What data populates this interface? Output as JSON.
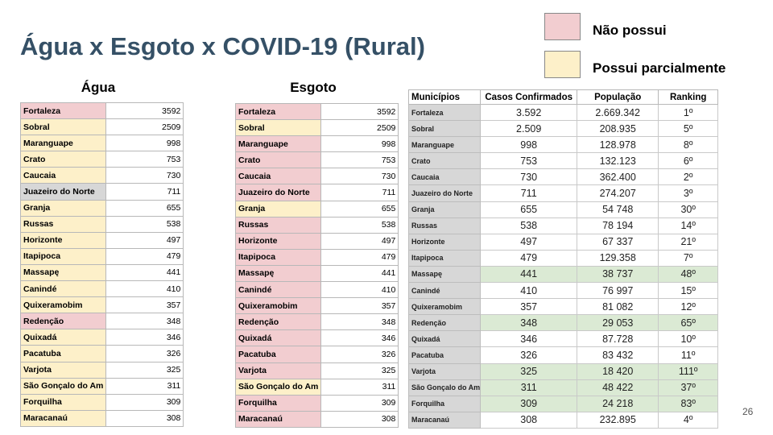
{
  "slide": {
    "title": "Água x Esgoto x COVID-19 (Rural)",
    "page_number": "26"
  },
  "legend": [
    {
      "label": "Não possui",
      "color": "#f2cdd0"
    },
    {
      "label": "Possui parcialmente",
      "color": "#fdf0c9"
    }
  ],
  "agua": {
    "heading": "Água",
    "rows": [
      {
        "name": "Fortaleza",
        "value": "3592",
        "status": "pink"
      },
      {
        "name": "Sobral",
        "value": "2509",
        "status": "yellow"
      },
      {
        "name": "Maranguape",
        "value": "998",
        "status": "yellow"
      },
      {
        "name": "Crato",
        "value": "753",
        "status": "yellow"
      },
      {
        "name": "Caucaia",
        "value": "730",
        "status": "yellow"
      },
      {
        "name": "Juazeiro do Norte",
        "value": "711",
        "status": "grey"
      },
      {
        "name": "Granja",
        "value": "655",
        "status": "yellow"
      },
      {
        "name": "Russas",
        "value": "538",
        "status": "yellow"
      },
      {
        "name": "Horizonte",
        "value": "497",
        "status": "yellow"
      },
      {
        "name": "Itapipoca",
        "value": "479",
        "status": "yellow"
      },
      {
        "name": "Massapę",
        "value": "441",
        "status": "yellow"
      },
      {
        "name": "Canindé",
        "value": "410",
        "status": "yellow"
      },
      {
        "name": "Quixeramobim",
        "value": "357",
        "status": "yellow"
      },
      {
        "name": "Redenção",
        "value": "348",
        "status": "pink"
      },
      {
        "name": "Quixadá",
        "value": "346",
        "status": "yellow"
      },
      {
        "name": "Pacatuba",
        "value": "326",
        "status": "yellow"
      },
      {
        "name": "Varjota",
        "value": "325",
        "status": "yellow"
      },
      {
        "name": "São Gonçalo do Am",
        "value": "311",
        "status": "yellow"
      },
      {
        "name": "Forquilha",
        "value": "309",
        "status": "yellow"
      },
      {
        "name": "Maracanaú",
        "value": "308",
        "status": "yellow"
      }
    ]
  },
  "esgoto": {
    "heading": "Esgoto",
    "rows": [
      {
        "name": "Fortaleza",
        "value": "3592",
        "status": "pink"
      },
      {
        "name": "Sobral",
        "value": "2509",
        "status": "yellow"
      },
      {
        "name": "Maranguape",
        "value": "998",
        "status": "pink"
      },
      {
        "name": "Crato",
        "value": "753",
        "status": "pink"
      },
      {
        "name": "Caucaia",
        "value": "730",
        "status": "pink"
      },
      {
        "name": "Juazeiro do Norte",
        "value": "711",
        "status": "pink"
      },
      {
        "name": "Granja",
        "value": "655",
        "status": "yellow"
      },
      {
        "name": "Russas",
        "value": "538",
        "status": "pink"
      },
      {
        "name": "Horizonte",
        "value": "497",
        "status": "pink"
      },
      {
        "name": "Itapipoca",
        "value": "479",
        "status": "pink"
      },
      {
        "name": "Massapę",
        "value": "441",
        "status": "pink"
      },
      {
        "name": "Canindé",
        "value": "410",
        "status": "pink"
      },
      {
        "name": "Quixeramobim",
        "value": "357",
        "status": "pink"
      },
      {
        "name": "Redenção",
        "value": "348",
        "status": "pink"
      },
      {
        "name": "Quixadá",
        "value": "346",
        "status": "pink"
      },
      {
        "name": "Pacatuba",
        "value": "326",
        "status": "pink"
      },
      {
        "name": "Varjota",
        "value": "325",
        "status": "pink"
      },
      {
        "name": "São Gonçalo do Am",
        "value": "311",
        "status": "yellow"
      },
      {
        "name": "Forquilha",
        "value": "309",
        "status": "pink"
      },
      {
        "name": "Maracanaú",
        "value": "308",
        "status": "pink"
      }
    ]
  },
  "main_table": {
    "headers": [
      "Municípios",
      "Casos Confirmados",
      "População",
      "Ranking"
    ],
    "rows": [
      {
        "municipio": "Fortaleza",
        "casos": "3.592",
        "populacao": "2.669.342",
        "ranking": "1º",
        "highlight": "white"
      },
      {
        "municipio": "Sobral",
        "casos": "2.509",
        "populacao": "208.935",
        "ranking": "5º",
        "highlight": "white"
      },
      {
        "municipio": "Maranguape",
        "casos": "998",
        "populacao": "128.978",
        "ranking": "8º",
        "highlight": "white"
      },
      {
        "municipio": "Crato",
        "casos": "753",
        "populacao": "132.123",
        "ranking": "6º",
        "highlight": "white"
      },
      {
        "municipio": "Caucaia",
        "casos": "730",
        "populacao": "362.400",
        "ranking": "2º",
        "highlight": "white"
      },
      {
        "municipio": "Juazeiro do Norte",
        "casos": "711",
        "populacao": "274.207",
        "ranking": "3º",
        "highlight": "white"
      },
      {
        "municipio": "Granja",
        "casos": "655",
        "populacao": "54 748",
        "ranking": "30º",
        "highlight": "white"
      },
      {
        "municipio": "Russas",
        "casos": "538",
        "populacao": "78 194",
        "ranking": "14º",
        "highlight": "white"
      },
      {
        "municipio": "Horizonte",
        "casos": "497",
        "populacao": "67 337",
        "ranking": "21º",
        "highlight": "white"
      },
      {
        "municipio": "Itapipoca",
        "casos": "479",
        "populacao": "129.358",
        "ranking": "7º",
        "highlight": "white"
      },
      {
        "municipio": "Massapę",
        "casos": "441",
        "populacao": "38 737",
        "ranking": "48º",
        "highlight": "green"
      },
      {
        "municipio": "Canindé",
        "casos": "410",
        "populacao": "76 997",
        "ranking": "15º",
        "highlight": "white"
      },
      {
        "municipio": "Quixeramobim",
        "casos": "357",
        "populacao": "81 082",
        "ranking": "12º",
        "highlight": "white"
      },
      {
        "municipio": "Redenção",
        "casos": "348",
        "populacao": "29 053",
        "ranking": "65º",
        "highlight": "green"
      },
      {
        "municipio": "Quixadá",
        "casos": "346",
        "populacao": "87.728",
        "ranking": "10º",
        "highlight": "white"
      },
      {
        "municipio": "Pacatuba",
        "casos": "326",
        "populacao": "83 432",
        "ranking": "11º",
        "highlight": "white"
      },
      {
        "municipio": "Varjota",
        "casos": "325",
        "populacao": "18 420",
        "ranking": "111º",
        "highlight": "green"
      },
      {
        "municipio": "São Gonçalo do Am",
        "casos": "311",
        "populacao": "48 422",
        "ranking": "37º",
        "highlight": "green"
      },
      {
        "municipio": "Forquilha",
        "casos": "309",
        "populacao": "24 218",
        "ranking": "83º",
        "highlight": "green"
      },
      {
        "municipio": "Maracanaú",
        "casos": "308",
        "populacao": "232.895",
        "ranking": "4º",
        "highlight": "white"
      }
    ]
  }
}
